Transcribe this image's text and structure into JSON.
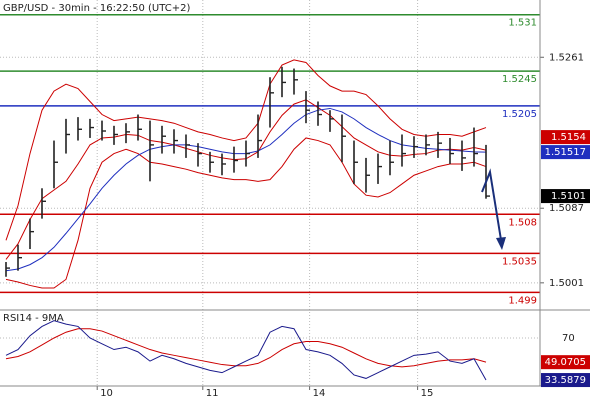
{
  "chart_data": [
    {
      "type": "ohlc",
      "title": "GBP/USD - 30min - 16:22:50 (UTC+2)",
      "xlim": [
        -0.5,
        44.5
      ],
      "xticks": [
        {
          "value": 7.6,
          "label": "10"
        },
        {
          "value": 16.4,
          "label": "11"
        },
        {
          "value": 25.3,
          "label": "14"
        },
        {
          "value": 34.3,
          "label": "15"
        }
      ],
      "ylim": [
        1.4972,
        1.5327
      ],
      "yticks": [
        1.5261,
        1.5087,
        1.5001
      ],
      "grid": true,
      "bar_color": "#222222",
      "high": [
        1.5025,
        1.5045,
        1.5075,
        1.511,
        1.5165,
        1.519,
        1.5192,
        1.519,
        1.5188,
        1.5182,
        1.5185,
        1.5195,
        1.5188,
        1.5182,
        1.5178,
        1.5172,
        1.5162,
        1.5152,
        1.515,
        1.5158,
        1.5165,
        1.5195,
        1.5238,
        1.525,
        1.5248,
        1.5222,
        1.521,
        1.52,
        1.5195,
        1.5165,
        1.5145,
        1.515,
        1.5165,
        1.5172,
        1.517,
        1.5172,
        1.5175,
        1.5168,
        1.5165,
        1.518,
        1.516
      ],
      "low": [
        1.5008,
        1.5015,
        1.504,
        1.5075,
        1.511,
        1.515,
        1.5165,
        1.5168,
        1.5165,
        1.516,
        1.5162,
        1.5165,
        1.5118,
        1.515,
        1.515,
        1.5145,
        1.5135,
        1.5128,
        1.5125,
        1.5128,
        1.5135,
        1.5145,
        1.518,
        1.5215,
        1.5218,
        1.5185,
        1.5182,
        1.5175,
        1.514,
        1.5115,
        1.5105,
        1.5115,
        1.5125,
        1.5135,
        1.5145,
        1.5148,
        1.5145,
        1.5138,
        1.513,
        1.5135,
        1.5098
      ],
      "close": [
        1.5018,
        1.503,
        1.506,
        1.5095,
        1.514,
        1.5172,
        1.5178,
        1.518,
        1.5176,
        1.5172,
        1.5175,
        1.5178,
        1.516,
        1.517,
        1.5165,
        1.516,
        1.515,
        1.514,
        1.5138,
        1.5142,
        1.515,
        1.5165,
        1.522,
        1.5232,
        1.5235,
        1.52,
        1.5195,
        1.519,
        1.517,
        1.514,
        1.5125,
        1.5135,
        1.514,
        1.515,
        1.5158,
        1.516,
        1.5162,
        1.515,
        1.5145,
        1.515,
        1.5101
      ],
      "close_box_color": "#000000",
      "overlays": [
        {
          "color": "#cc0000",
          "values": [
            1.505,
            1.509,
            1.515,
            1.52,
            1.5222,
            1.523,
            1.5225,
            1.521,
            1.5195,
            1.5188,
            1.519,
            1.5192,
            1.519,
            1.5188,
            1.5185,
            1.518,
            1.5175,
            1.5172,
            1.5168,
            1.5165,
            1.5168,
            1.5185,
            1.523,
            1.5252,
            1.5258,
            1.5255,
            1.524,
            1.5228,
            1.5222,
            1.5222,
            1.5218,
            1.5205,
            1.519,
            1.5178,
            1.5172,
            1.517,
            1.5172,
            1.5172,
            1.517,
            1.5175,
            1.518
          ]
        },
        {
          "color": "#cc0000",
          "values": [
            1.5005,
            1.5002,
            1.4998,
            1.4995,
            1.4995,
            1.5005,
            1.505,
            1.511,
            1.514,
            1.515,
            1.5155,
            1.515,
            1.514,
            1.5138,
            1.5135,
            1.5132,
            1.5128,
            1.5125,
            1.5122,
            1.512,
            1.512,
            1.5118,
            1.512,
            1.5135,
            1.5155,
            1.5168,
            1.5165,
            1.516,
            1.514,
            1.5115,
            1.5102,
            1.51,
            1.5105,
            1.5115,
            1.5125,
            1.513,
            1.5135,
            1.5138,
            1.5138,
            1.514,
            1.5135
          ]
        },
        {
          "color": "#cc0000",
          "boxed": true,
          "values": [
            1.5028,
            1.5046,
            1.5074,
            1.5098,
            1.5108,
            1.5118,
            1.5138,
            1.516,
            1.5168,
            1.5169,
            1.5172,
            1.5171,
            1.5165,
            1.5163,
            1.516,
            1.5156,
            1.5152,
            1.5148,
            1.5145,
            1.5143,
            1.5144,
            1.5152,
            1.5175,
            1.5194,
            1.5207,
            1.5212,
            1.5203,
            1.5194,
            1.5181,
            1.5168,
            1.516,
            1.5152,
            1.5148,
            1.5147,
            1.5149,
            1.515,
            1.5154,
            1.5155,
            1.5154,
            1.5157,
            1.5154
          ]
        },
        {
          "color": "#1f2fbf",
          "boxed": true,
          "values": [
            1.5015,
            1.5017,
            1.5022,
            1.503,
            1.5042,
            1.5058,
            1.5075,
            1.5092,
            1.511,
            1.5125,
            1.5138,
            1.5148,
            1.5155,
            1.5158,
            1.516,
            1.516,
            1.5158,
            1.5155,
            1.5152,
            1.515,
            1.515,
            1.5153,
            1.516,
            1.5172,
            1.5185,
            1.5195,
            1.52,
            1.5202,
            1.5198,
            1.519,
            1.518,
            1.5172,
            1.5165,
            1.516,
            1.5158,
            1.5156,
            1.5155,
            1.5154,
            1.5153,
            1.5152,
            1.51517
          ]
        }
      ],
      "levels": [
        {
          "value": 1.531,
          "color": "#2e8b2e"
        },
        {
          "value": 1.5245,
          "color": "#2e8b2e"
        },
        {
          "value": 1.5205,
          "color": "#1f2fbf"
        },
        {
          "value": 1.508,
          "color": "#cc0000"
        },
        {
          "value": 1.5035,
          "color": "#cc0000"
        },
        {
          "value": 1.499,
          "color": "#cc0000"
        }
      ]
    },
    {
      "type": "line",
      "title": "RSI14 - 9MA",
      "ylim": [
        29.3,
        92.5
      ],
      "yticks": [
        70
      ],
      "series": [
        {
          "color": "#cc0000",
          "values": [
            52,
            54,
            58,
            64,
            70,
            75,
            78,
            78,
            76,
            72,
            68,
            64,
            60,
            57,
            55,
            53,
            51,
            49,
            47,
            46,
            46,
            48,
            53,
            60,
            65,
            67,
            67,
            65,
            62,
            57,
            52,
            48,
            46,
            45,
            46,
            48,
            50,
            51,
            51,
            52,
            49.0705
          ]
        },
        {
          "color": "#1a1a8c",
          "values": [
            55,
            60,
            72,
            80,
            85,
            82,
            80,
            70,
            65,
            60,
            62,
            58,
            50,
            55,
            52,
            48,
            45,
            42,
            40,
            45,
            50,
            55,
            75,
            80,
            78,
            60,
            58,
            55,
            48,
            38,
            35,
            40,
            45,
            50,
            55,
            56,
            58,
            50,
            48,
            52,
            33.5879
          ]
        }
      ]
    }
  ]
}
